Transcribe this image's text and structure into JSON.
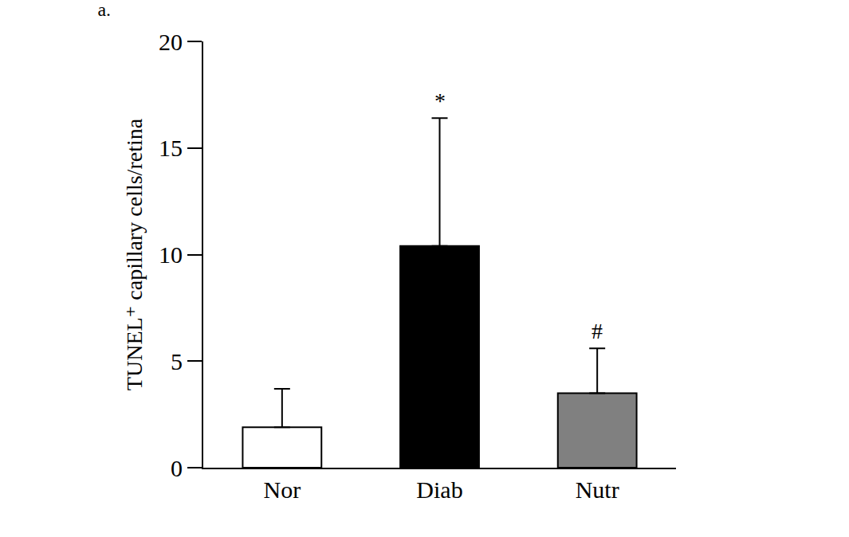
{
  "chart_data": {
    "type": "bar",
    "title": "a.",
    "y_label": "TUNEL⁺ capillary cells/retina",
    "categories": [
      "Nor",
      "Diab",
      "Nutr"
    ],
    "values": [
      1.9,
      10.4,
      3.5
    ],
    "errors": [
      1.8,
      6.0,
      2.1
    ],
    "colors": [
      "#ffffff",
      "#000000",
      "#808080"
    ],
    "ylim": [
      0,
      20
    ],
    "yticks": [
      0,
      5,
      10,
      15,
      20
    ],
    "grid": false,
    "annotations": [
      {
        "category": "Diab",
        "text": "*"
      },
      {
        "category": "Nutr",
        "text": "#"
      }
    ]
  }
}
